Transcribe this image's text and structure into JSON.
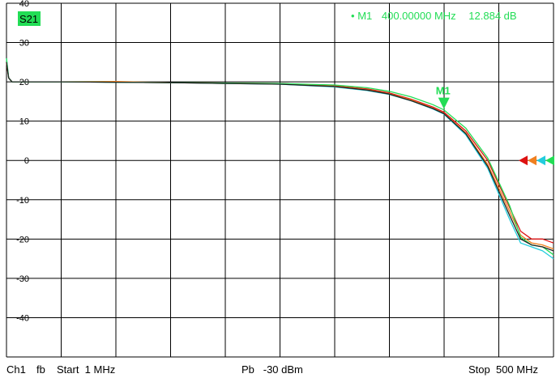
{
  "trace_label": "S21",
  "marker_readout": {
    "bullet": "•",
    "name": "M1",
    "frequency": "400.00000 MHz",
    "value": "12.884 dB"
  },
  "marker_tag": "M1",
  "footer": {
    "channel": "Ch1",
    "format": "fb",
    "start": "Start  1 MHz",
    "power": "Pb   -30 dBm",
    "stop": "Stop  500 MHz"
  },
  "colors": {
    "trace_label_bg": "#22dd55",
    "marker": "#22dd55",
    "readout": "#22dd55",
    "red": "#dd1111",
    "orange": "#f08020",
    "cyan": "#22ccdd",
    "green": "#22dd55",
    "dark": "#222222",
    "grid": "#000000"
  },
  "chart_data": {
    "type": "line",
    "title": "",
    "xlabel": "",
    "ylabel": "",
    "xlim": [
      1,
      500
    ],
    "ylim": [
      -50,
      40
    ],
    "yticks": [
      40,
      30,
      20,
      10,
      0,
      -10,
      -20,
      -30,
      -40
    ],
    "grid": true,
    "x": [
      1,
      3,
      6,
      12,
      25,
      50,
      100,
      150,
      200,
      250,
      300,
      330,
      350,
      370,
      390,
      400,
      420,
      440,
      460,
      470,
      480,
      490,
      500
    ],
    "series": [
      {
        "color": "red",
        "values": [
          25,
          21,
          20,
          20,
          20,
          20,
          19.9,
          19.8,
          19.7,
          19.6,
          19.0,
          18.2,
          17.2,
          15.6,
          13.6,
          12.3,
          7.5,
          0,
          -12.0,
          -18.0,
          -20.0,
          -20.0,
          -21.0
        ]
      },
      {
        "color": "orange",
        "values": [
          25,
          21,
          20,
          20,
          20,
          20,
          20.1,
          19.8,
          19.6,
          19.5,
          18.9,
          18.0,
          17.0,
          15.4,
          13.3,
          12.0,
          7.0,
          -1.0,
          -13.0,
          -19.0,
          -21.0,
          -21.5,
          -22.5
        ]
      },
      {
        "color": "cyan",
        "values": [
          26,
          21,
          20,
          20,
          20,
          20,
          19.9,
          19.8,
          19.6,
          19.4,
          18.7,
          17.8,
          16.8,
          15.2,
          13.1,
          11.8,
          6.5,
          -2.0,
          -15.0,
          -21.0,
          -22.0,
          -23.0,
          -25.0
        ]
      },
      {
        "color": "green",
        "values": [
          26,
          21,
          20,
          20,
          20,
          20,
          19.9,
          19.8,
          19.7,
          19.6,
          19.2,
          18.5,
          17.6,
          16.2,
          14.2,
          12.884,
          8.2,
          0.6,
          -11.5,
          -19.5,
          -21.5,
          -22.0,
          -24.0
        ]
      },
      {
        "color": "dark",
        "values": [
          25,
          21,
          20,
          20,
          20,
          20,
          19.9,
          19.8,
          19.6,
          19.4,
          18.8,
          17.9,
          16.9,
          15.2,
          13.2,
          11.9,
          6.8,
          -1.5,
          -14.0,
          -20.0,
          -21.5,
          -22.0,
          -23.0
        ]
      }
    ],
    "marker": {
      "name": "M1",
      "x": 400,
      "y": 12.884
    },
    "reference_arrows": {
      "y": 0,
      "colors": [
        "red",
        "orange",
        "cyan",
        "green"
      ]
    }
  }
}
